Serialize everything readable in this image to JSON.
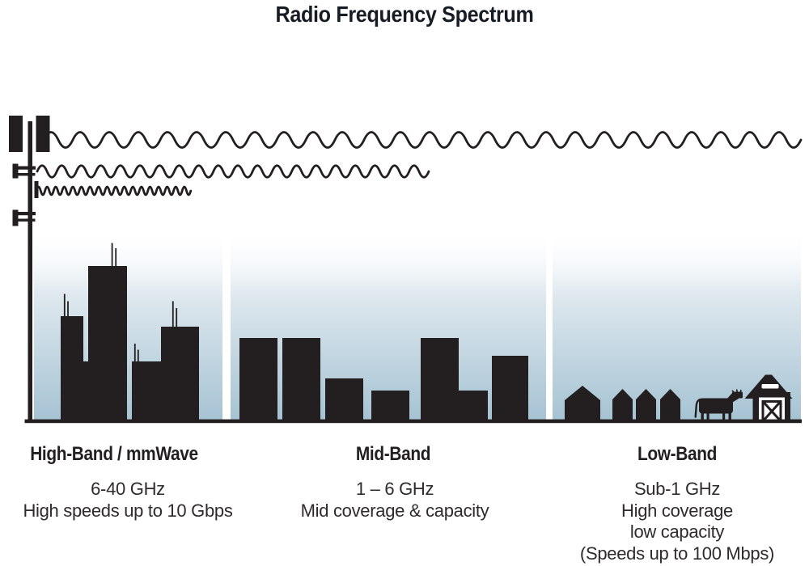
{
  "title": "Radio Frequency Spectrum",
  "bands": [
    {
      "heading": "High-Band / mmWave",
      "lines": [
        "6-40 GHz",
        "High speeds up to 10 Gbps"
      ],
      "scene": "city skyline with antennas",
      "wave": "short wavelength, shortest reach"
    },
    {
      "heading": "Mid-Band",
      "lines": [
        "1 – 6 GHz",
        "Mid coverage & capacity"
      ],
      "scene": "town buildings",
      "wave": "medium wavelength, medium reach"
    },
    {
      "heading": "Low-Band",
      "lines": [
        "Sub-1 GHz",
        "High coverage",
        "low capacity",
        "(Speeds up to 100 Mbps)"
      ],
      "scene": "rural houses, cow and barn",
      "wave": "long wavelength, longest reach"
    }
  ],
  "icons": [
    "cell-tower-icon",
    "low-band-wave",
    "mid-band-wave",
    "high-band-wave",
    "city-skyline",
    "town-buildings",
    "house-icon",
    "cow-icon",
    "barn-icon"
  ],
  "colors": {
    "ink": "#231f20",
    "title_text": "#171c25",
    "body_text": "#2e2b2c",
    "sky_mid": "#dfe9ef",
    "sky_bottom": "#a6c3d3"
  }
}
